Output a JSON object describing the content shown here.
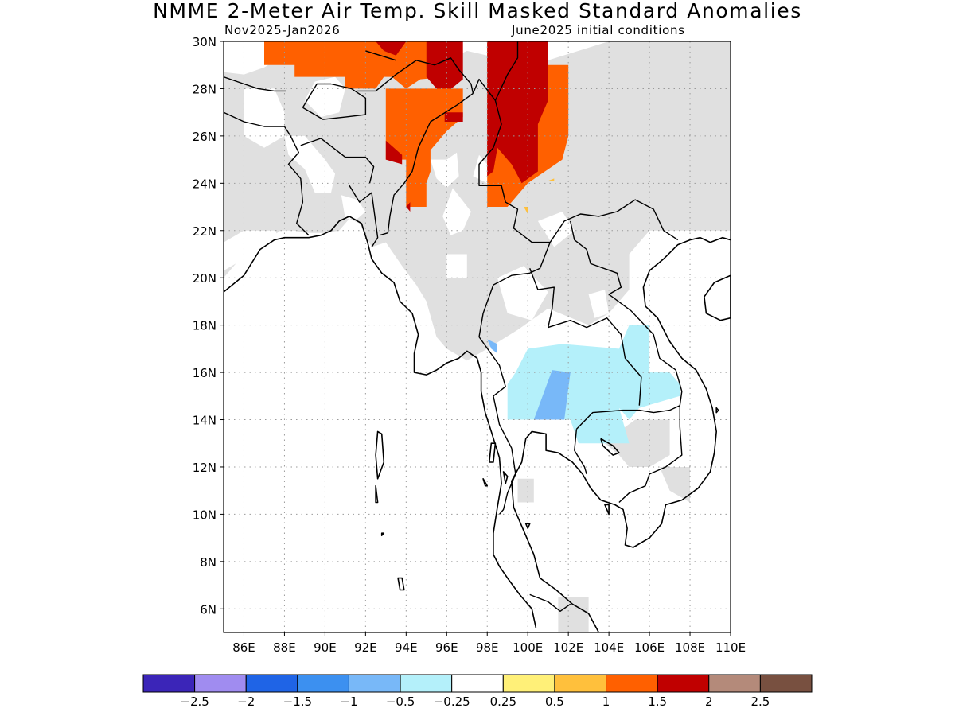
{
  "title": "NMME 2-Meter Air Temp. Skill Masked Standard Anomalies",
  "subtitle_left": "Nov2025-Jan2026",
  "subtitle_right": "June2025 initial conditions",
  "map": {
    "lon_range": [
      85,
      110
    ],
    "lat_range": [
      5,
      30
    ],
    "lat_ticks": [
      "30N",
      "28N",
      "26N",
      "24N",
      "22N",
      "20N",
      "18N",
      "16N",
      "14N",
      "12N",
      "10N",
      "8N",
      "6N"
    ],
    "lon_ticks": [
      "86E",
      "88E",
      "90E",
      "92E",
      "94E",
      "96E",
      "98E",
      "100E",
      "102E",
      "104E",
      "106E",
      "108E",
      "110E"
    ],
    "grid": "dotted",
    "mask_color": "#e0e0e0",
    "coastline_color": "#000000"
  },
  "colorbar": {
    "colors": [
      "#3b25b8",
      "#a08cf0",
      "#1f64e6",
      "#3c90f0",
      "#78b8f8",
      "#b4f0fa",
      "#ffffff",
      "#fff078",
      "#ffc03c",
      "#ff6000",
      "#c00000",
      "#b48a7a",
      "#785040"
    ],
    "labels": [
      "-2.5",
      "-2",
      "-1.5",
      "-1",
      "-0.5",
      "-0.25",
      "0.25",
      "0.5",
      "1",
      "1.5",
      "2",
      "2.5"
    ]
  }
}
